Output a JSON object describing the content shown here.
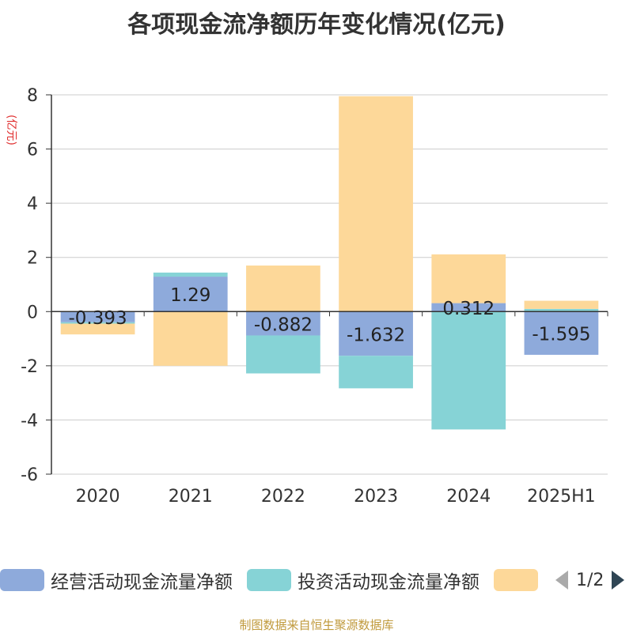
{
  "title": "各项现金流净额历年变化情况(亿元)",
  "ylabel": "(亿元)",
  "footer": "制图数据来自恒生聚源数据库",
  "legend": {
    "items": [
      {
        "label": "经营活动现金流量净额",
        "color": "#8eaadb"
      },
      {
        "label": "投资活动现金流量净额",
        "color": "#86d3d6"
      },
      {
        "label": "",
        "color": "#fdd899"
      }
    ],
    "page": "1/2"
  },
  "chart_data": {
    "type": "bar",
    "stacked": true,
    "title": "各项现金流净额历年变化情况(亿元)",
    "ylabel": "(亿元)",
    "ylim": [
      -6,
      8
    ],
    "yticks": [
      8,
      6,
      4,
      2,
      0,
      -2,
      -4,
      -6
    ],
    "categories": [
      "2020",
      "2021",
      "2022",
      "2023",
      "2024",
      "2025H1"
    ],
    "series": [
      {
        "name": "经营活动现金流量净额",
        "color": "#8eaadb",
        "values": [
          -0.393,
          1.29,
          -0.882,
          -1.632,
          0.312,
          -1.595
        ],
        "labels": [
          "-0.393",
          "1.29",
          "-0.882",
          "-1.632",
          "0.312",
          "-1.595"
        ]
      },
      {
        "name": "投资活动现金流量净额",
        "color": "#86d3d6",
        "values": [
          -0.05,
          0.15,
          -1.4,
          -1.2,
          -4.35,
          0.1
        ]
      },
      {
        "color": "#fdd899",
        "values": [
          -0.4,
          -2.0,
          1.7,
          7.95,
          1.8,
          0.3
        ]
      }
    ],
    "grid": true,
    "legend_position": "bottom"
  }
}
